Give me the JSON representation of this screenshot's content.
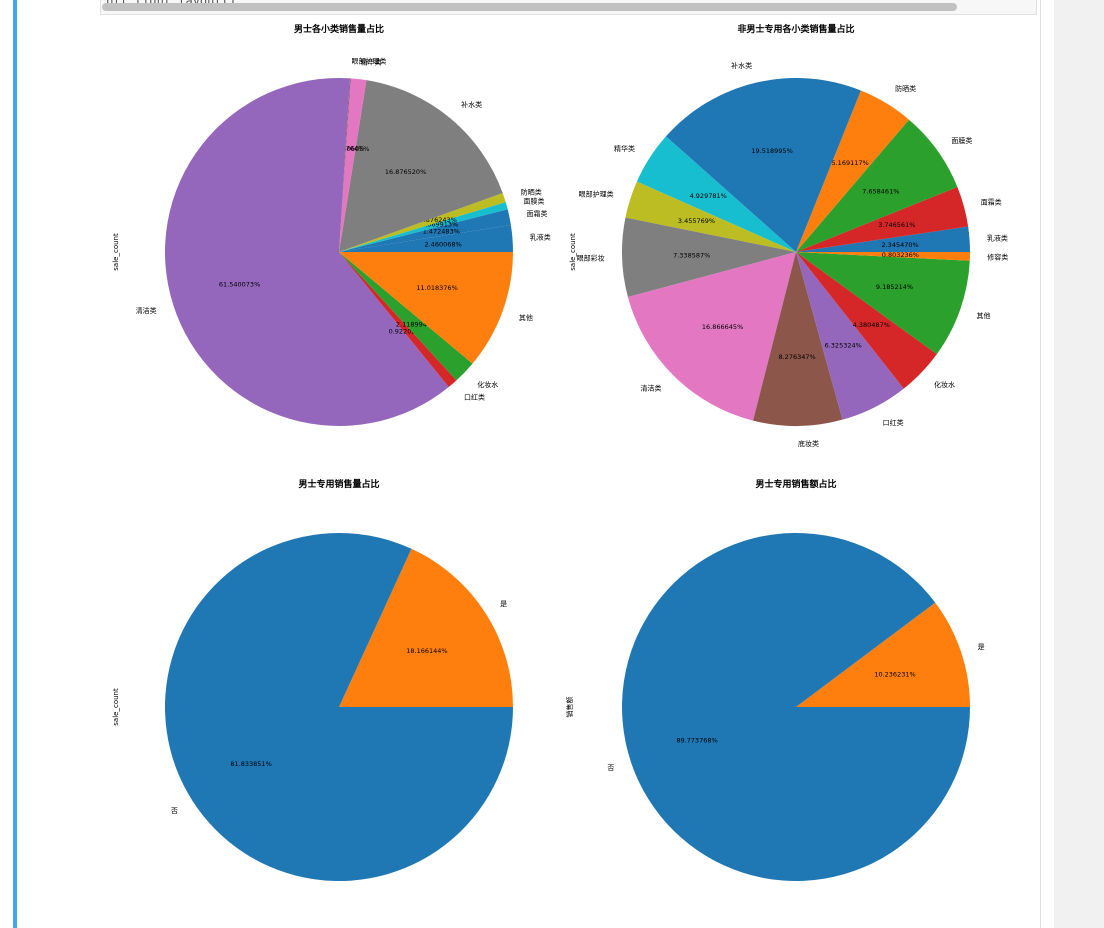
{
  "notebook": {
    "code_fragment": "plt.tight_layout()"
  },
  "chart_data": [
    {
      "type": "pie",
      "title": "男士各小类销售量占比",
      "ylabel": "sale_count",
      "slices": [
        {
          "label": "乳液类",
          "pct": "2.460068%",
          "value": 2.460068,
          "color": "#1f77b4"
        },
        {
          "label": "面霜类",
          "pct": "1.472483%",
          "value": 1.472483,
          "color": "#1f77b4"
        },
        {
          "label": "面膜类",
          "pct": "0.669913%",
          "value": 0.669913,
          "color": "#17becf"
        },
        {
          "label": "防晒类",
          "pct": "0.876243%",
          "value": 0.876243,
          "color": "#bcbd22"
        },
        {
          "label": "补水类",
          "pct": "16.876520%",
          "value": 16.87652,
          "color": "#7f7f7f"
        },
        {
          "label": "精华类",
          "pct": "1.440605%",
          "value": 1.440605,
          "color": "#e377c2"
        },
        {
          "label": "眼部护理类",
          "pct": "0.062764%",
          "value": 0.062764,
          "color": "#8c564b"
        },
        {
          "label": "清洁类",
          "pct": "61.540073%",
          "value": 61.540073,
          "color": "#9467bd"
        },
        {
          "label": "口红类",
          "pct": "0.922022%",
          "value": 0.922022,
          "color": "#d62728"
        },
        {
          "label": "化妆水",
          "pct": "2.118994%",
          "value": 2.118994,
          "color": "#2ca02c"
        },
        {
          "label": "其他",
          "pct": "11.018376%",
          "value": 11.018376,
          "color": "#ff7f0e"
        }
      ]
    },
    {
      "type": "pie",
      "title": "非男士专用各小类销售量占比",
      "ylabel": "sale_count",
      "slices": [
        {
          "label": "乳液类",
          "pct": "2.345470%",
          "value": 2.34547,
          "color": "#1f77b4"
        },
        {
          "label": "面霜类",
          "pct": "3.746561%",
          "value": 3.746561,
          "color": "#d62728"
        },
        {
          "label": "面膜类",
          "pct": "7.658461%",
          "value": 7.658461,
          "color": "#2ca02c"
        },
        {
          "label": "防晒类",
          "pct": "5.169117%",
          "value": 5.169117,
          "color": "#ff7f0e"
        },
        {
          "label": "补水类",
          "pct": "19.518995%",
          "value": 19.518995,
          "color": "#1f77b4"
        },
        {
          "label": "精华类",
          "pct": "4.929781%",
          "value": 4.929781,
          "color": "#17becf"
        },
        {
          "label": "眼部护理类",
          "pct": "3.455769%",
          "value": 3.455769,
          "color": "#bcbd22"
        },
        {
          "label": "眼部彩妆",
          "pct": "7.338587%",
          "value": 7.338587,
          "color": "#7f7f7f"
        },
        {
          "label": "清洁类",
          "pct": "16.866645%",
          "value": 16.866645,
          "color": "#e377c2"
        },
        {
          "label": "底妆类",
          "pct": "8.276347%",
          "value": 8.276347,
          "color": "#8c564b"
        },
        {
          "label": "口红类",
          "pct": "6.325324%",
          "value": 6.325324,
          "color": "#9467bd"
        },
        {
          "label": "化妆水",
          "pct": "4.380487%",
          "value": 4.380487,
          "color": "#d62728"
        },
        {
          "label": "其他",
          "pct": "9.185214%",
          "value": 9.185214,
          "color": "#2ca02c"
        },
        {
          "label": "修容类",
          "pct": "0.803236%",
          "value": 0.803236,
          "color": "#ff7f0e"
        }
      ]
    },
    {
      "type": "pie",
      "title": "男士专用销售量占比",
      "ylabel": "sale_count",
      "slices": [
        {
          "label": "是",
          "pct": "18.166144%",
          "value": 18.166144,
          "color": "#ff7f0e"
        },
        {
          "label": "否",
          "pct": "81.833851%",
          "value": 81.833851,
          "color": "#1f77b4"
        }
      ]
    },
    {
      "type": "pie",
      "title": "男士专用销售额占比",
      "ylabel": "销售额",
      "slices": [
        {
          "label": "是",
          "pct": "10.236231%",
          "value": 10.236231,
          "color": "#ff7f0e"
        },
        {
          "label": "否",
          "pct": "89.773768%",
          "value": 89.773768,
          "color": "#1f77b4"
        }
      ]
    }
  ]
}
